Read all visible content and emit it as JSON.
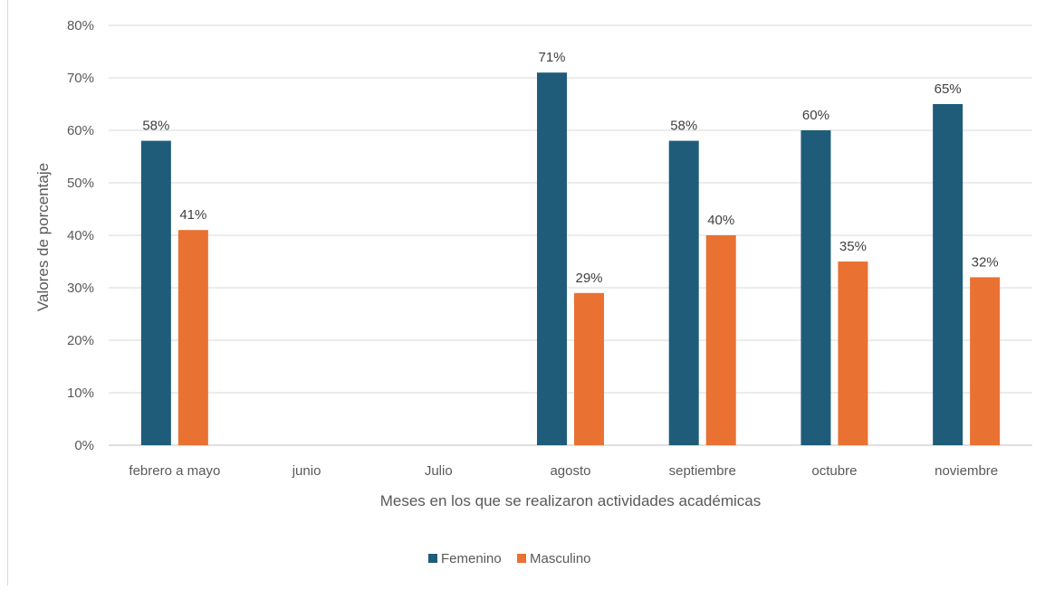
{
  "chart_data": {
    "type": "bar",
    "title": "",
    "xlabel": "Meses en los que se realizaron actividades académicas",
    "ylabel": "Valores de porcentaje",
    "ylim": [
      0,
      80
    ],
    "ytick_step": 10,
    "ytick_suffix": "%",
    "grid": true,
    "legend_position": "bottom",
    "categories": [
      "febrero a mayo",
      "junio",
      "Julio",
      "agosto",
      "septiembre",
      "octubre",
      "noviembre"
    ],
    "series": [
      {
        "name": "Femenino",
        "color": "#1f5c7a",
        "values": [
          58,
          null,
          null,
          71,
          58,
          60,
          65
        ]
      },
      {
        "name": "Masculino",
        "color": "#e97132",
        "values": [
          41,
          null,
          null,
          29,
          40,
          35,
          32
        ]
      }
    ],
    "data_labels": true,
    "value_suffix": "%"
  }
}
